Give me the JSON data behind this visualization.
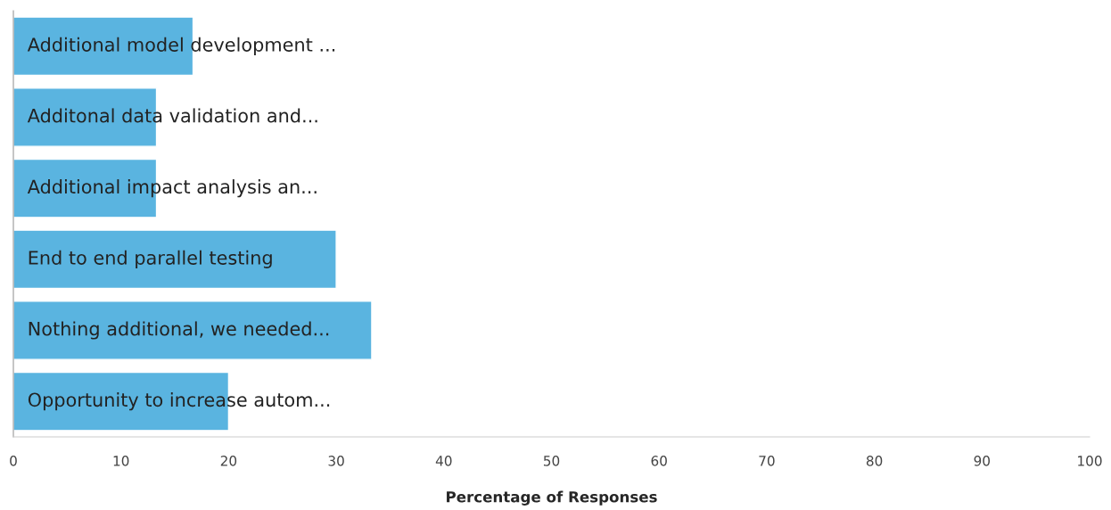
{
  "chart_data": {
    "type": "bar",
    "orientation": "horizontal",
    "xlabel": "Percentage of Responses",
    "categories": [
      "Additional model development ...",
      "Additonal data validation and...",
      "Additional impact analysis an...",
      "End to end parallel testing",
      "Nothing additional, we needed...",
      "Opportunity to increase autom..."
    ],
    "values": [
      16.7,
      13.3,
      13.3,
      30,
      33.3,
      20
    ],
    "color": "#5ab4e0",
    "xlim": [
      0,
      100
    ],
    "xticks": [
      0,
      10,
      20,
      30,
      40,
      50,
      60,
      70,
      80,
      90,
      100
    ],
    "grid": false,
    "legend": false
  }
}
